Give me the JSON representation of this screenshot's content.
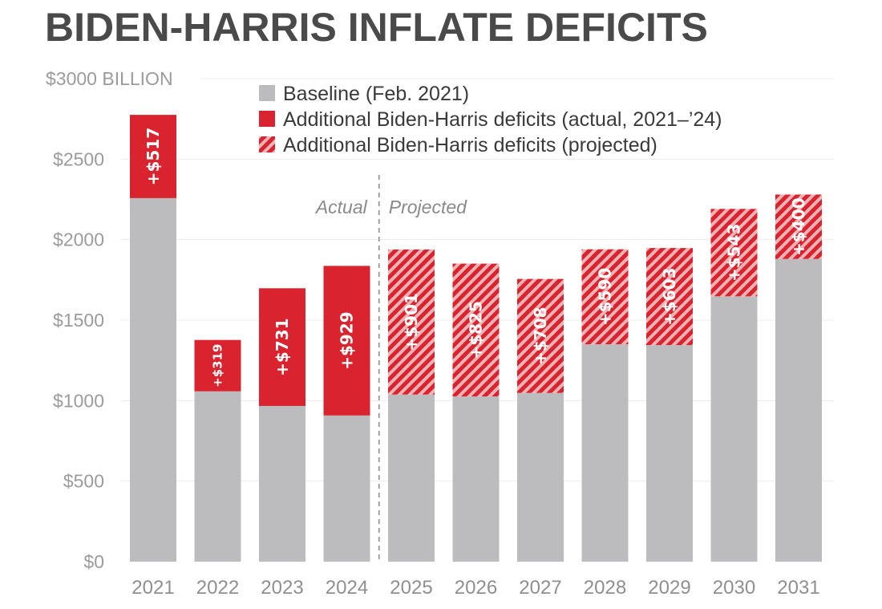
{
  "chart_data": {
    "type": "bar",
    "stacked": true,
    "title": "BIDEN-HARRIS INFLATE DEFICITS",
    "ylabel": "",
    "xlabel": "",
    "ylim": [
      0,
      3000
    ],
    "yticks": [
      {
        "value": 0,
        "label": "$0"
      },
      {
        "value": 500,
        "label": "$500"
      },
      {
        "value": 1000,
        "label": "$1000"
      },
      {
        "value": 1500,
        "label": "$1500"
      },
      {
        "value": 2000,
        "label": "$2000"
      },
      {
        "value": 2500,
        "label": "$2500"
      },
      {
        "value": 3000,
        "label": "$3000 BILLION"
      }
    ],
    "grid": true,
    "categories": [
      "2021",
      "2022",
      "2023",
      "2024",
      "2025",
      "2026",
      "2027",
      "2028",
      "2029",
      "2030",
      "2031"
    ],
    "series": [
      {
        "name": "Baseline (Feb. 2021)",
        "color": "#bcbcbe",
        "values": [
          2258,
          1058,
          967,
          908,
          1038,
          1026,
          1048,
          1350,
          1345,
          1648,
          1880
        ]
      },
      {
        "name": "Additional Biden-Harris deficits (actual, 2021–’24)",
        "color": "#d9232e",
        "values": [
          517,
          319,
          731,
          929,
          null,
          null,
          null,
          null,
          null,
          null,
          null
        ],
        "labels": [
          "+$517",
          "+$319",
          "+$731",
          "+$929",
          null,
          null,
          null,
          null,
          null,
          null,
          null
        ]
      },
      {
        "name": "Additional Biden-Harris deficits (projected)",
        "color": "#d9232e",
        "pattern": "hatched",
        "values": [
          null,
          null,
          null,
          null,
          901,
          825,
          708,
          590,
          603,
          543,
          400
        ],
        "labels": [
          null,
          null,
          null,
          null,
          "+$901",
          "+$825",
          "+$708",
          "+$590",
          "+$603",
          "+$543",
          "+$400"
        ]
      }
    ],
    "legend": {
      "placement": "top-center"
    },
    "annotations": {
      "divider_between": [
        "2024",
        "2025"
      ],
      "left_label": "Actual",
      "right_label": "Projected"
    }
  }
}
